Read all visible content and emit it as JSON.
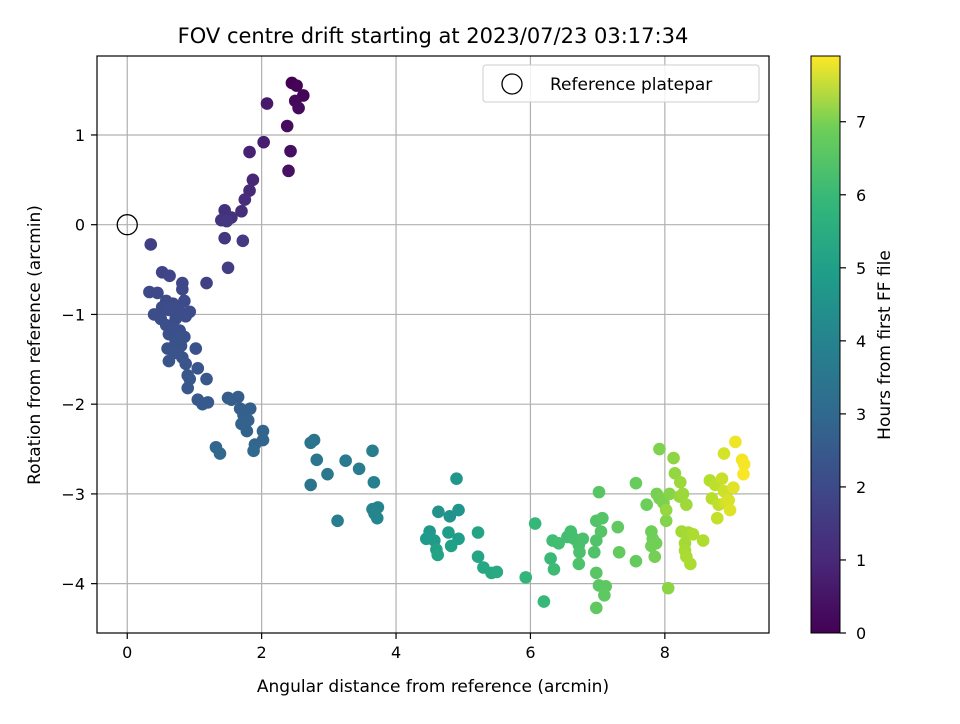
{
  "chart_data": {
    "type": "scatter",
    "title": "FOV centre drift starting at 2023/07/23 03:17:34",
    "xlabel": "Angular distance from reference (arcmin)",
    "ylabel": "Rotation from reference (arcmin)",
    "xlim": [
      -0.45,
      9.55
    ],
    "ylim": [
      -4.55,
      1.88
    ],
    "xticks": [
      0,
      2,
      4,
      6,
      8
    ],
    "yticks": [
      -4,
      -3,
      -2,
      -1,
      0,
      1
    ],
    "xtick_labels": [
      "0",
      "2",
      "4",
      "6",
      "8"
    ],
    "ytick_labels": [
      "−4",
      "−3",
      "−2",
      "−1",
      "0",
      "1"
    ],
    "grid": true,
    "colormap": "viridis",
    "colorbar": {
      "label": "Hours from first FF file",
      "range": [
        0,
        7.9
      ],
      "ticks": [
        0,
        1,
        2,
        3,
        4,
        5,
        6,
        7
      ],
      "tick_labels": [
        "0",
        "1",
        "2",
        "3",
        "4",
        "5",
        "6",
        "7"
      ]
    },
    "legend": {
      "placement": "top-right",
      "entries": [
        "Reference platepar"
      ]
    },
    "reference_point": {
      "x": 0,
      "y": 0
    },
    "points": [
      {
        "x": 2.45,
        "y": 1.58,
        "c": 0.0
      },
      {
        "x": 2.52,
        "y": 1.55,
        "c": 0.05
      },
      {
        "x": 2.62,
        "y": 1.44,
        "c": 0.1
      },
      {
        "x": 2.5,
        "y": 1.38,
        "c": 0.15
      },
      {
        "x": 2.55,
        "y": 1.3,
        "c": 0.2
      },
      {
        "x": 2.38,
        "y": 1.1,
        "c": 0.25
      },
      {
        "x": 2.43,
        "y": 0.82,
        "c": 0.3
      },
      {
        "x": 2.4,
        "y": 0.6,
        "c": 0.35
      },
      {
        "x": 2.08,
        "y": 1.35,
        "c": 0.55
      },
      {
        "x": 2.03,
        "y": 0.92,
        "c": 0.65
      },
      {
        "x": 1.82,
        "y": 0.81,
        "c": 0.75
      },
      {
        "x": 1.87,
        "y": 0.5,
        "c": 0.85
      },
      {
        "x": 1.82,
        "y": 0.38,
        "c": 0.95
      },
      {
        "x": 1.75,
        "y": 0.28,
        "c": 1.0
      },
      {
        "x": 1.7,
        "y": 0.15,
        "c": 1.05
      },
      {
        "x": 1.45,
        "y": 0.16,
        "c": 1.1
      },
      {
        "x": 1.55,
        "y": 0.08,
        "c": 1.15
      },
      {
        "x": 1.4,
        "y": 0.05,
        "c": 1.2
      },
      {
        "x": 1.48,
        "y": 0.04,
        "c": 1.25
      },
      {
        "x": 1.45,
        "y": -0.15,
        "c": 1.3
      },
      {
        "x": 1.72,
        "y": -0.18,
        "c": 1.35
      },
      {
        "x": 1.5,
        "y": -0.48,
        "c": 1.45
      },
      {
        "x": 1.18,
        "y": -0.65,
        "c": 1.55
      },
      {
        "x": 0.35,
        "y": -0.22,
        "c": 1.5
      },
      {
        "x": 0.52,
        "y": -0.53,
        "c": 1.6
      },
      {
        "x": 0.63,
        "y": -0.57,
        "c": 1.65
      },
      {
        "x": 0.82,
        "y": -0.65,
        "c": 1.7
      },
      {
        "x": 0.82,
        "y": -0.72,
        "c": 1.72
      },
      {
        "x": 0.33,
        "y": -0.75,
        "c": 1.75
      },
      {
        "x": 0.45,
        "y": -0.76,
        "c": 1.75
      },
      {
        "x": 0.58,
        "y": -0.85,
        "c": 1.8
      },
      {
        "x": 0.68,
        "y": -0.88,
        "c": 1.8
      },
      {
        "x": 0.85,
        "y": -0.85,
        "c": 1.82
      },
      {
        "x": 0.52,
        "y": -0.92,
        "c": 1.82
      },
      {
        "x": 0.62,
        "y": -0.95,
        "c": 1.85
      },
      {
        "x": 0.77,
        "y": -0.95,
        "c": 1.85
      },
      {
        "x": 0.93,
        "y": -0.97,
        "c": 1.85
      },
      {
        "x": 0.87,
        "y": -1.02,
        "c": 1.88
      },
      {
        "x": 0.4,
        "y": -1.0,
        "c": 1.88
      },
      {
        "x": 0.5,
        "y": -1.05,
        "c": 1.9
      },
      {
        "x": 0.72,
        "y": -1.05,
        "c": 1.9
      },
      {
        "x": 0.58,
        "y": -1.12,
        "c": 1.92
      },
      {
        "x": 0.68,
        "y": -1.15,
        "c": 1.92
      },
      {
        "x": 0.78,
        "y": -1.18,
        "c": 1.95
      },
      {
        "x": 0.62,
        "y": -1.22,
        "c": 1.95
      },
      {
        "x": 0.85,
        "y": -1.25,
        "c": 1.98
      },
      {
        "x": 0.72,
        "y": -1.3,
        "c": 2.0
      },
      {
        "x": 0.6,
        "y": -1.38,
        "c": 2.0
      },
      {
        "x": 0.8,
        "y": -1.35,
        "c": 2.0
      },
      {
        "x": 1.02,
        "y": -1.38,
        "c": 2.02
      },
      {
        "x": 0.7,
        "y": -1.43,
        "c": 2.05
      },
      {
        "x": 0.82,
        "y": -1.48,
        "c": 2.05
      },
      {
        "x": 0.62,
        "y": -1.52,
        "c": 2.08
      },
      {
        "x": 0.87,
        "y": -1.55,
        "c": 2.1
      },
      {
        "x": 1.05,
        "y": -1.6,
        "c": 2.1
      },
      {
        "x": 0.9,
        "y": -1.68,
        "c": 2.12
      },
      {
        "x": 0.93,
        "y": -1.72,
        "c": 2.15
      },
      {
        "x": 1.18,
        "y": -1.72,
        "c": 2.15
      },
      {
        "x": 0.9,
        "y": -1.82,
        "c": 2.18
      },
      {
        "x": 1.05,
        "y": -1.95,
        "c": 2.2
      },
      {
        "x": 1.12,
        "y": -2.0,
        "c": 2.22
      },
      {
        "x": 1.2,
        "y": -1.98,
        "c": 2.25
      },
      {
        "x": 1.5,
        "y": -1.93,
        "c": 2.3
      },
      {
        "x": 1.65,
        "y": -1.92,
        "c": 2.32
      },
      {
        "x": 1.55,
        "y": -1.95,
        "c": 2.35
      },
      {
        "x": 1.68,
        "y": -2.05,
        "c": 2.38
      },
      {
        "x": 1.83,
        "y": -2.05,
        "c": 2.4
      },
      {
        "x": 1.73,
        "y": -2.12,
        "c": 2.42
      },
      {
        "x": 1.8,
        "y": -2.18,
        "c": 2.45
      },
      {
        "x": 1.7,
        "y": -2.22,
        "c": 2.48
      },
      {
        "x": 1.78,
        "y": -2.3,
        "c": 2.5
      },
      {
        "x": 2.02,
        "y": -2.3,
        "c": 2.52
      },
      {
        "x": 2.02,
        "y": -2.4,
        "c": 2.55
      },
      {
        "x": 1.9,
        "y": -2.45,
        "c": 2.58
      },
      {
        "x": 1.32,
        "y": -2.48,
        "c": 2.6
      },
      {
        "x": 1.38,
        "y": -2.55,
        "c": 2.62
      },
      {
        "x": 1.88,
        "y": -2.52,
        "c": 2.65
      },
      {
        "x": 2.78,
        "y": -2.4,
        "c": 3.0
      },
      {
        "x": 2.73,
        "y": -2.43,
        "c": 3.02
      },
      {
        "x": 2.82,
        "y": -2.62,
        "c": 3.1
      },
      {
        "x": 2.98,
        "y": -2.78,
        "c": 3.15
      },
      {
        "x": 2.73,
        "y": -2.9,
        "c": 3.05
      },
      {
        "x": 3.25,
        "y": -2.63,
        "c": 3.2
      },
      {
        "x": 3.45,
        "y": -2.72,
        "c": 3.3
      },
      {
        "x": 3.65,
        "y": -2.52,
        "c": 3.4
      },
      {
        "x": 3.67,
        "y": -2.87,
        "c": 3.45
      },
      {
        "x": 3.13,
        "y": -3.3,
        "c": 3.35
      },
      {
        "x": 3.65,
        "y": -3.17,
        "c": 3.5
      },
      {
        "x": 3.73,
        "y": -3.15,
        "c": 3.55
      },
      {
        "x": 3.68,
        "y": -3.22,
        "c": 3.58
      },
      {
        "x": 3.72,
        "y": -3.27,
        "c": 3.6
      },
      {
        "x": 4.63,
        "y": -3.2,
        "c": 4.0
      },
      {
        "x": 4.8,
        "y": -3.25,
        "c": 4.05
      },
      {
        "x": 4.93,
        "y": -3.18,
        "c": 4.1
      },
      {
        "x": 4.9,
        "y": -2.83,
        "c": 4.15
      },
      {
        "x": 4.5,
        "y": -3.42,
        "c": 4.2
      },
      {
        "x": 4.45,
        "y": -3.5,
        "c": 4.25
      },
      {
        "x": 4.57,
        "y": -3.52,
        "c": 4.3
      },
      {
        "x": 4.78,
        "y": -3.43,
        "c": 4.35
      },
      {
        "x": 4.93,
        "y": -3.5,
        "c": 4.4
      },
      {
        "x": 4.82,
        "y": -3.58,
        "c": 4.45
      },
      {
        "x": 4.6,
        "y": -3.62,
        "c": 4.5
      },
      {
        "x": 4.62,
        "y": -3.68,
        "c": 4.55
      },
      {
        "x": 5.22,
        "y": -3.43,
        "c": 4.6
      },
      {
        "x": 5.22,
        "y": -3.7,
        "c": 4.65
      },
      {
        "x": 5.3,
        "y": -3.82,
        "c": 4.7
      },
      {
        "x": 5.42,
        "y": -3.88,
        "c": 4.75
      },
      {
        "x": 5.5,
        "y": -3.87,
        "c": 4.8
      },
      {
        "x": 5.93,
        "y": -3.93,
        "c": 5.2
      },
      {
        "x": 6.07,
        "y": -3.33,
        "c": 5.25
      },
      {
        "x": 6.2,
        "y": -4.2,
        "c": 5.3
      },
      {
        "x": 6.3,
        "y": -3.72,
        "c": 5.35
      },
      {
        "x": 6.35,
        "y": -3.84,
        "c": 5.4
      },
      {
        "x": 6.33,
        "y": -3.52,
        "c": 5.45
      },
      {
        "x": 6.42,
        "y": -3.55,
        "c": 5.48
      },
      {
        "x": 6.55,
        "y": -3.48,
        "c": 5.5
      },
      {
        "x": 6.6,
        "y": -3.42,
        "c": 5.52
      },
      {
        "x": 6.65,
        "y": -3.5,
        "c": 5.55
      },
      {
        "x": 6.72,
        "y": -3.57,
        "c": 5.58
      },
      {
        "x": 6.78,
        "y": -3.5,
        "c": 5.6
      },
      {
        "x": 6.73,
        "y": -3.65,
        "c": 5.62
      },
      {
        "x": 6.72,
        "y": -3.78,
        "c": 5.65
      },
      {
        "x": 6.95,
        "y": -3.65,
        "c": 5.68
      },
      {
        "x": 6.98,
        "y": -3.52,
        "c": 5.7
      },
      {
        "x": 6.98,
        "y": -3.3,
        "c": 5.72
      },
      {
        "x": 7.07,
        "y": -3.27,
        "c": 5.75
      },
      {
        "x": 7.05,
        "y": -3.42,
        "c": 5.78
      },
      {
        "x": 7.02,
        "y": -2.98,
        "c": 5.8
      },
      {
        "x": 6.98,
        "y": -3.88,
        "c": 5.82
      },
      {
        "x": 7.02,
        "y": -4.02,
        "c": 5.85
      },
      {
        "x": 7.12,
        "y": -4.03,
        "c": 5.88
      },
      {
        "x": 7.1,
        "y": -4.13,
        "c": 5.9
      },
      {
        "x": 6.98,
        "y": -4.27,
        "c": 5.92
      },
      {
        "x": 7.3,
        "y": -3.37,
        "c": 5.95
      },
      {
        "x": 7.32,
        "y": -3.65,
        "c": 5.98
      },
      {
        "x": 7.57,
        "y": -3.75,
        "c": 6.0
      },
      {
        "x": 7.57,
        "y": -2.88,
        "c": 6.05
      },
      {
        "x": 7.73,
        "y": -3.12,
        "c": 6.1
      },
      {
        "x": 7.8,
        "y": -3.42,
        "c": 6.12
      },
      {
        "x": 7.82,
        "y": -3.5,
        "c": 6.15
      },
      {
        "x": 7.87,
        "y": -3.55,
        "c": 6.18
      },
      {
        "x": 7.8,
        "y": -3.58,
        "c": 6.2
      },
      {
        "x": 7.85,
        "y": -3.7,
        "c": 6.22
      },
      {
        "x": 7.88,
        "y": -3.0,
        "c": 6.25
      },
      {
        "x": 7.92,
        "y": -3.05,
        "c": 6.28
      },
      {
        "x": 7.98,
        "y": -3.1,
        "c": 6.3
      },
      {
        "x": 7.92,
        "y": -2.5,
        "c": 6.35
      },
      {
        "x": 8.02,
        "y": -3.3,
        "c": 6.4
      },
      {
        "x": 8.07,
        "y": -3.0,
        "c": 6.45
      },
      {
        "x": 8.05,
        "y": -4.05,
        "c": 6.5
      },
      {
        "x": 8.13,
        "y": -2.6,
        "c": 6.55
      },
      {
        "x": 8.15,
        "y": -2.77,
        "c": 6.6
      },
      {
        "x": 8.02,
        "y": -3.18,
        "c": 6.62
      },
      {
        "x": 8.22,
        "y": -3.03,
        "c": 6.65
      },
      {
        "x": 8.23,
        "y": -2.87,
        "c": 6.7
      },
      {
        "x": 8.27,
        "y": -3.0,
        "c": 6.72
      },
      {
        "x": 8.32,
        "y": -3.12,
        "c": 6.75
      },
      {
        "x": 8.25,
        "y": -3.42,
        "c": 6.78
      },
      {
        "x": 8.3,
        "y": -3.55,
        "c": 6.8
      },
      {
        "x": 8.35,
        "y": -3.43,
        "c": 6.82
      },
      {
        "x": 8.3,
        "y": -3.63,
        "c": 6.85
      },
      {
        "x": 8.32,
        "y": -3.7,
        "c": 6.88
      },
      {
        "x": 8.38,
        "y": -3.78,
        "c": 6.9
      },
      {
        "x": 8.42,
        "y": -3.45,
        "c": 6.92
      },
      {
        "x": 8.57,
        "y": -3.52,
        "c": 6.95
      },
      {
        "x": 8.67,
        "y": -2.85,
        "c": 7.0
      },
      {
        "x": 8.7,
        "y": -3.05,
        "c": 7.05
      },
      {
        "x": 8.75,
        "y": -2.9,
        "c": 7.1
      },
      {
        "x": 8.8,
        "y": -3.12,
        "c": 7.15
      },
      {
        "x": 8.78,
        "y": -3.27,
        "c": 7.2
      },
      {
        "x": 8.85,
        "y": -2.83,
        "c": 7.25
      },
      {
        "x": 8.88,
        "y": -2.97,
        "c": 7.3
      },
      {
        "x": 8.9,
        "y": -3.1,
        "c": 7.35
      },
      {
        "x": 8.88,
        "y": -2.55,
        "c": 7.4
      },
      {
        "x": 8.95,
        "y": -3.07,
        "c": 7.45
      },
      {
        "x": 8.97,
        "y": -3.18,
        "c": 7.5
      },
      {
        "x": 9.02,
        "y": -2.93,
        "c": 7.55
      },
      {
        "x": 9.05,
        "y": -2.42,
        "c": 7.7
      },
      {
        "x": 9.15,
        "y": -2.62,
        "c": 7.75
      },
      {
        "x": 9.18,
        "y": -2.67,
        "c": 7.8
      },
      {
        "x": 9.17,
        "y": -2.78,
        "c": 7.85
      }
    ]
  }
}
